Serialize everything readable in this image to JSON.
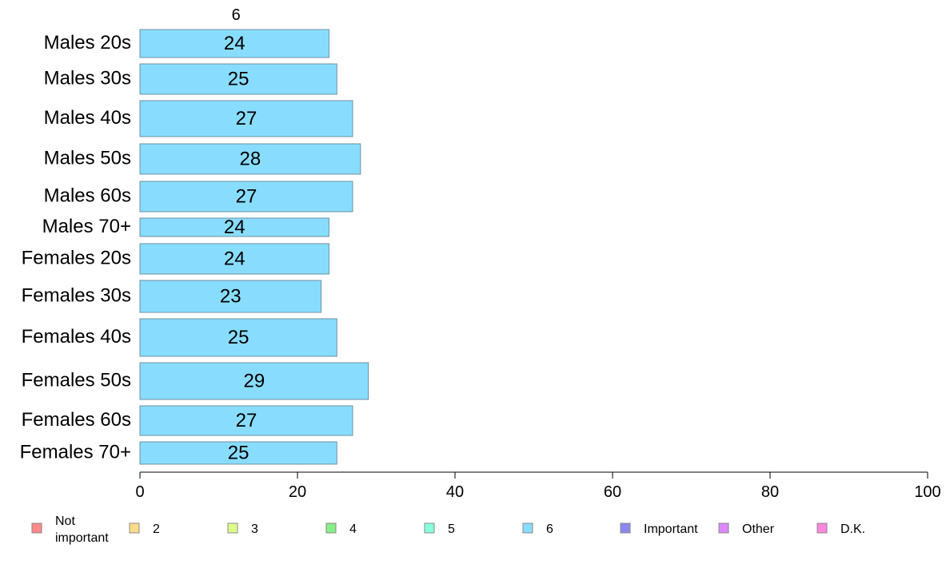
{
  "chart_data": {
    "type": "bar",
    "orientation": "horizontal",
    "stacked": true,
    "categories": [
      "Males 20s",
      "Males 30s",
      "Males 40s",
      "Males 50s",
      "Males 60s",
      "Males 70+",
      "Females 20s",
      "Females 30s",
      "Females 40s",
      "Females 50s",
      "Females 60s",
      "Females 70+"
    ],
    "series": [
      {
        "name": "6",
        "color": "#88ddff",
        "values": [
          24,
          25,
          27,
          28,
          27,
          24,
          24,
          23,
          25,
          29,
          27,
          25
        ]
      }
    ],
    "series_label_above": "6",
    "xlim": [
      0,
      100
    ],
    "xticks": [
      0,
      20,
      40,
      60,
      80,
      100
    ],
    "grid": false,
    "legend_position": "bottom",
    "legend": [
      {
        "label": "Not important",
        "color": "#ff8888"
      },
      {
        "label": "2",
        "color": "#ffdd88"
      },
      {
        "label": "3",
        "color": "#ddff88"
      },
      {
        "label": "4",
        "color": "#88ee88"
      },
      {
        "label": "5",
        "color": "#88ffdd"
      },
      {
        "label": "6",
        "color": "#88ddff"
      },
      {
        "label": "Important",
        "color": "#8888ee"
      },
      {
        "label": "Other",
        "color": "#dd88ff"
      },
      {
        "label": "D.K.",
        "color": "#ff88dd"
      }
    ]
  }
}
